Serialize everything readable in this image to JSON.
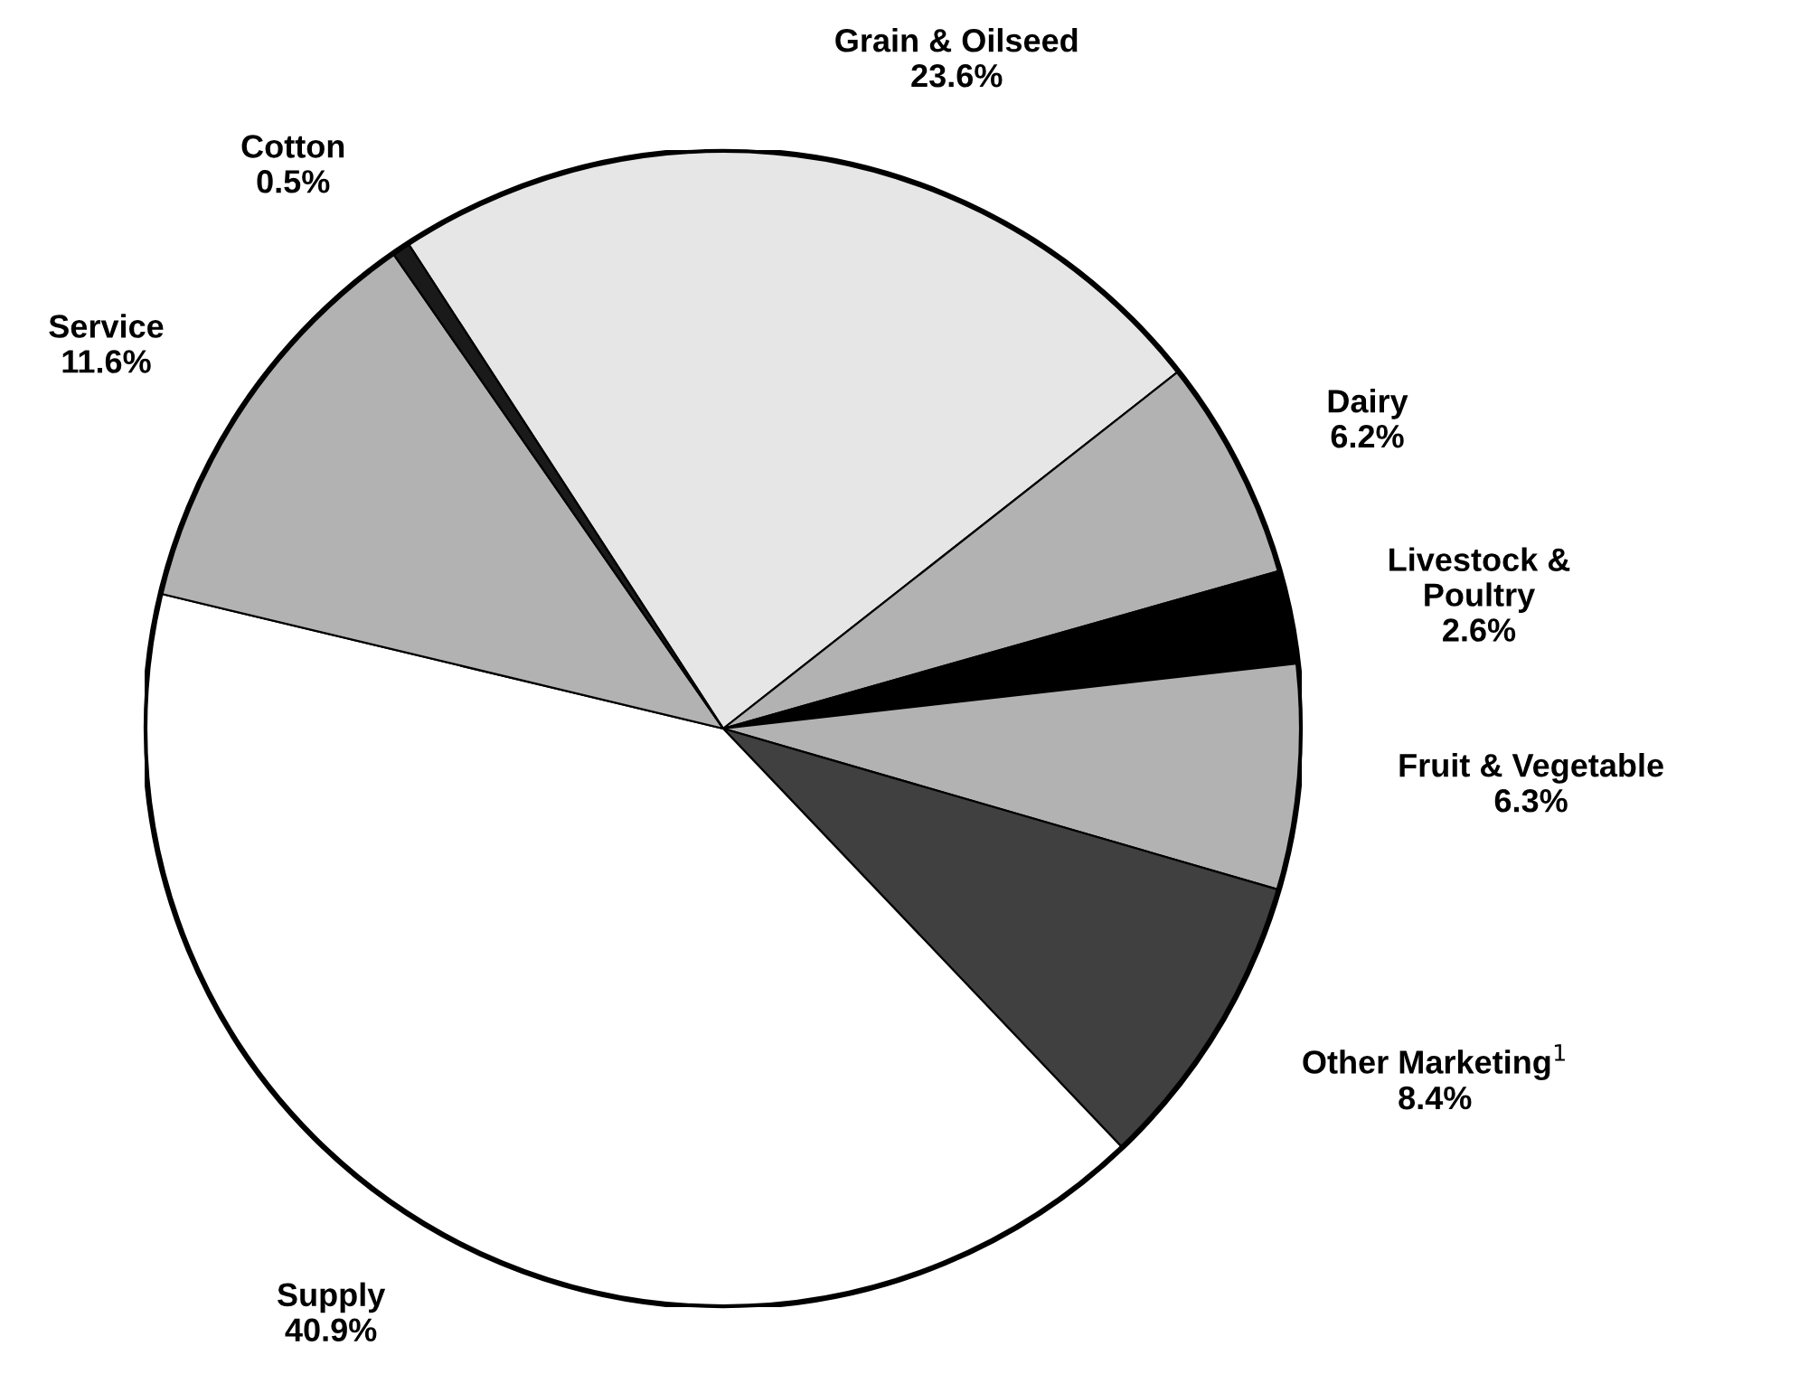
{
  "chart_data": {
    "type": "pie",
    "categories": [
      "Grain & Oilseed",
      "Dairy",
      "Livestock &\nPoultry",
      "Fruit & Vegetable",
      "Other Marketing$^{1}$",
      "Supply",
      "Service",
      "Cotton"
    ],
    "values": [
      23.6,
      6.2,
      2.6,
      6.3,
      8.4,
      40.9,
      11.6,
      0.5
    ],
    "value_labels": [
      "23.6%",
      "6.2%",
      "2.6%",
      "6.3%",
      "8.4%",
      "40.9%",
      "11.6%",
      "0.5%"
    ],
    "colors": [
      "#e6e6e6",
      "#b2b2b2",
      "#000000",
      "#b2b2b2",
      "#404040",
      "#ffffff",
      "#b2b2b2",
      "#1a1a1a"
    ],
    "legend": false
  }
}
